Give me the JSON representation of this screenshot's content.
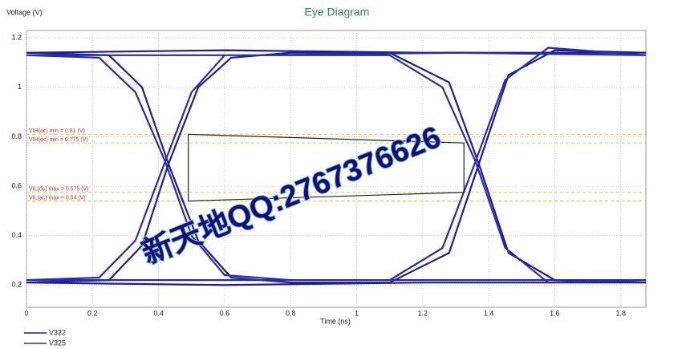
{
  "chart_data": {
    "type": "line",
    "title": "Eye Diagram",
    "y_label": "Voltage (V)",
    "x_label": "Time (ns)",
    "xlim": [
      0,
      1.876
    ],
    "ylim": [
      0.11,
      1.23
    ],
    "xticks": [
      0,
      0.2,
      0.4,
      0.6,
      0.8,
      1,
      1.2,
      1.4,
      1.6,
      1.8
    ],
    "yticks": [
      0.2,
      0.4,
      0.6,
      0.8,
      1,
      1.2
    ],
    "grid": true,
    "series": [
      {
        "name": "V322",
        "color": "#1c1c9c",
        "x": [
          0,
          0.25,
          0.35,
          0.43,
          0.52,
          0.62,
          0.8,
          1.1,
          1.28,
          1.37,
          1.46,
          1.6,
          1.876,
          null,
          0,
          0.25,
          0.35,
          0.43,
          0.52,
          0.62,
          0.8,
          1.1,
          1.28,
          1.37,
          1.46,
          1.6,
          1.876,
          null,
          0,
          0.6,
          1.2,
          1.876,
          null,
          0,
          0.6,
          1.2,
          1.876
        ],
        "values": [
          1.14,
          1.13,
          1.0,
          0.69,
          0.38,
          0.23,
          0.21,
          0.21,
          0.33,
          0.69,
          1.05,
          1.15,
          1.14,
          null,
          0.21,
          0.22,
          0.36,
          0.69,
          1.0,
          1.12,
          1.14,
          1.14,
          1.02,
          0.69,
          0.33,
          0.22,
          0.21,
          null,
          1.14,
          1.15,
          1.14,
          1.14,
          null,
          0.21,
          0.2,
          0.21,
          0.21
        ]
      },
      {
        "name": "V325",
        "color": "#2a2ab0",
        "x": [
          0,
          0.22,
          0.33,
          0.42,
          0.5,
          0.6,
          0.8,
          1.1,
          1.26,
          1.36,
          1.45,
          1.58,
          1.876,
          null,
          0,
          0.22,
          0.33,
          0.42,
          0.5,
          0.6,
          0.8,
          1.1,
          1.26,
          1.36,
          1.45,
          1.58,
          1.876,
          null,
          0,
          0.7,
          1.3,
          1.876,
          null,
          0,
          0.7,
          1.3,
          1.876
        ],
        "values": [
          1.13,
          1.12,
          0.98,
          0.7,
          0.4,
          0.24,
          0.22,
          0.22,
          0.35,
          0.7,
          1.03,
          1.16,
          1.13,
          null,
          0.22,
          0.23,
          0.38,
          0.7,
          0.98,
          1.13,
          1.13,
          1.13,
          1.0,
          0.7,
          0.35,
          0.21,
          0.22,
          null,
          1.13,
          1.13,
          1.14,
          1.13,
          null,
          0.22,
          0.22,
          0.22,
          0.22
        ]
      }
    ],
    "thresholds": [
      {
        "label": "VIH(ac) min = 0.81 (V)",
        "value": 0.81
      },
      {
        "label": "VIH(dc) min = 0.775 (V)",
        "value": 0.775
      },
      {
        "label": "VIL(dc) max = 0.575 (V)",
        "value": 0.575
      },
      {
        "label": "VIL(ac) max = 0.54 (V)",
        "value": 0.54
      }
    ],
    "threshold_color": "#e0d020",
    "threshold_label_color": "#e03030",
    "mask": {
      "x": [
        0.49,
        1.325,
        1.325,
        0.49
      ],
      "y": [
        0.81,
        0.775,
        0.575,
        0.54
      ]
    },
    "watermark": "新天地QQ:2767376626"
  }
}
